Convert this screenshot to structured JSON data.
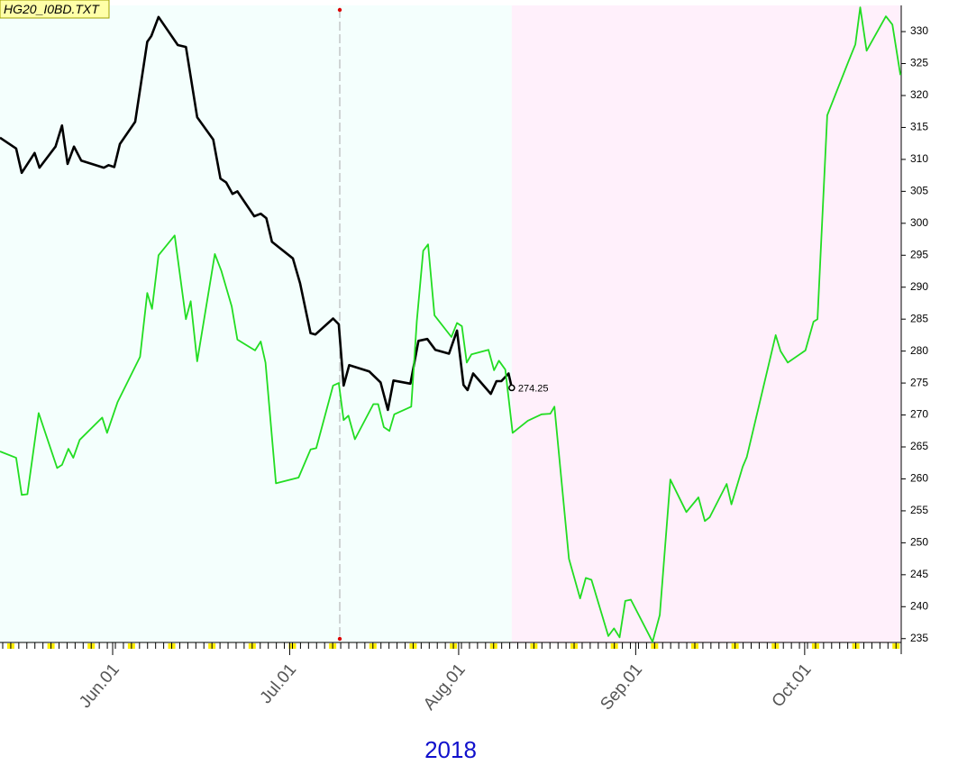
{
  "chart_data": {
    "type": "line",
    "title": "HG20_I0BD.TXT",
    "xlabel": "2018",
    "xlim": [
      0,
      112
    ],
    "xticks": [
      {
        "value": 14,
        "label": "Jun.01"
      },
      {
        "value": 36,
        "label": "Jul.01"
      },
      {
        "value": 57,
        "label": "Aug.01"
      },
      {
        "value": 79,
        "label": "Sep.01"
      },
      {
        "value": 100,
        "label": "Oct.01"
      }
    ],
    "ylim": [
      234.4,
      334.1
    ],
    "yticks": [
      235,
      240,
      245,
      250,
      255,
      260,
      265,
      270,
      275,
      280,
      285,
      290,
      295,
      300,
      305,
      310,
      315,
      320,
      325,
      330
    ],
    "series": [
      {
        "color": "#000000",
        "x": [
          0,
          2,
          2.7,
          4.3,
          4.9,
          6.9,
          7.7,
          8.4,
          9.2,
          10.1,
          12.9,
          13.5,
          14.2,
          14.9,
          16.8,
          18.3,
          18.8,
          19.7,
          22.1,
          23.1,
          24.5,
          26.5,
          27.4,
          28.1,
          28.9,
          29.5,
          31.6,
          32.4,
          33.1,
          33.8,
          36.4,
          37.3,
          38.6,
          39.2,
          41.4,
          42.1,
          42.7,
          43.4,
          45.9,
          47.3,
          48.2,
          48.9,
          51,
          52,
          53.1,
          54.1,
          55.8,
          56.8,
          57.6,
          58.1,
          58.8,
          61,
          61.7,
          62.3,
          63.2,
          63.6
        ],
        "values": [
          313.4,
          311.7,
          307.9,
          311.0,
          308.7,
          312.0,
          315.3,
          309.3,
          312.0,
          309.8,
          308.7,
          309.1,
          308.8,
          312.4,
          315.9,
          328.4,
          329.3,
          332.3,
          327.9,
          327.6,
          316.6,
          313.1,
          307.0,
          306.4,
          304.6,
          305.0,
          301.1,
          301.5,
          300.8,
          297.1,
          294.5,
          290.6,
          282.8,
          282.6,
          285.1,
          284.2,
          274.6,
          277.8,
          276.8,
          275.1,
          270.8,
          275.4,
          274.9,
          281.6,
          281.9,
          280.2,
          279.6,
          283.2,
          274.7,
          273.9,
          276.5,
          273.3,
          275.3,
          275.3,
          276.5,
          274.25
        ]
      },
      {
        "color": "#22dd22",
        "x": [
          0,
          2,
          2.7,
          3.4,
          4.8,
          7.1,
          7.7,
          8.5,
          9.1,
          9.9,
          12.7,
          13.3,
          14.6,
          17.4,
          18.3,
          18.9,
          19.7,
          21.7,
          23.1,
          23.7,
          24.5,
          26.7,
          27.5,
          28.8,
          29.5,
          31.7,
          32.4,
          33,
          34.3,
          37.1,
          38.6,
          39.3,
          41.4,
          42.1,
          42.7,
          43.3,
          44.1,
          46.4,
          47,
          47.7,
          48.4,
          49,
          51.1,
          51.8,
          52.6,
          53.2,
          54,
          56.1,
          56.8,
          57.4,
          58,
          58.6,
          60.7,
          61.4,
          62,
          62.8,
          63.7,
          65.6,
          67.3,
          68.4,
          68.9,
          70.7,
          72.1,
          72.8,
          73.5,
          75.6,
          76.3,
          77,
          77.7,
          78.4,
          81.1,
          82,
          83.3,
          85.3,
          86.8,
          87.6,
          88.2,
          90.3,
          90.9,
          92.3,
          92.8,
          96.4,
          97,
          97.9,
          100.1,
          101.1,
          101.6,
          102.8,
          105.4,
          106.3,
          106.9,
          107.7,
          110.1,
          110.9,
          111.9
        ],
        "values": [
          264.3,
          263.3,
          257.5,
          257.6,
          270.3,
          261.7,
          262.2,
          264.7,
          263.3,
          266.1,
          269.6,
          267.2,
          272.0,
          279.1,
          289.1,
          286.6,
          295.0,
          298.1,
          285.0,
          287.8,
          278.4,
          295.2,
          292.6,
          287.0,
          281.8,
          280.1,
          281.5,
          278.2,
          259.3,
          260.2,
          264.6,
          264.8,
          274.6,
          275.0,
          269.2,
          269.9,
          266.2,
          271.7,
          271.7,
          268.1,
          267.5,
          270.1,
          271.3,
          284.7,
          295.7,
          296.7,
          285.6,
          282.2,
          284.4,
          283.9,
          278.2,
          279.5,
          280.2,
          277.0,
          278.5,
          277.1,
          267.2,
          269.1,
          270.1,
          270.2,
          271.3,
          247.5,
          241.3,
          244.5,
          244.2,
          235.4,
          236.6,
          235.2,
          240.9,
          241.1,
          234.5,
          238.7,
          259.9,
          254.8,
          257.1,
          253.4,
          254.0,
          259.2,
          256.0,
          261.9,
          263.4,
          282.5,
          280.0,
          278.2,
          280.1,
          284.6,
          285.0,
          316.9,
          325.2,
          328.0,
          333.8,
          327.0,
          332.4,
          331.1,
          323.2
        ]
      }
    ]
  }
}
